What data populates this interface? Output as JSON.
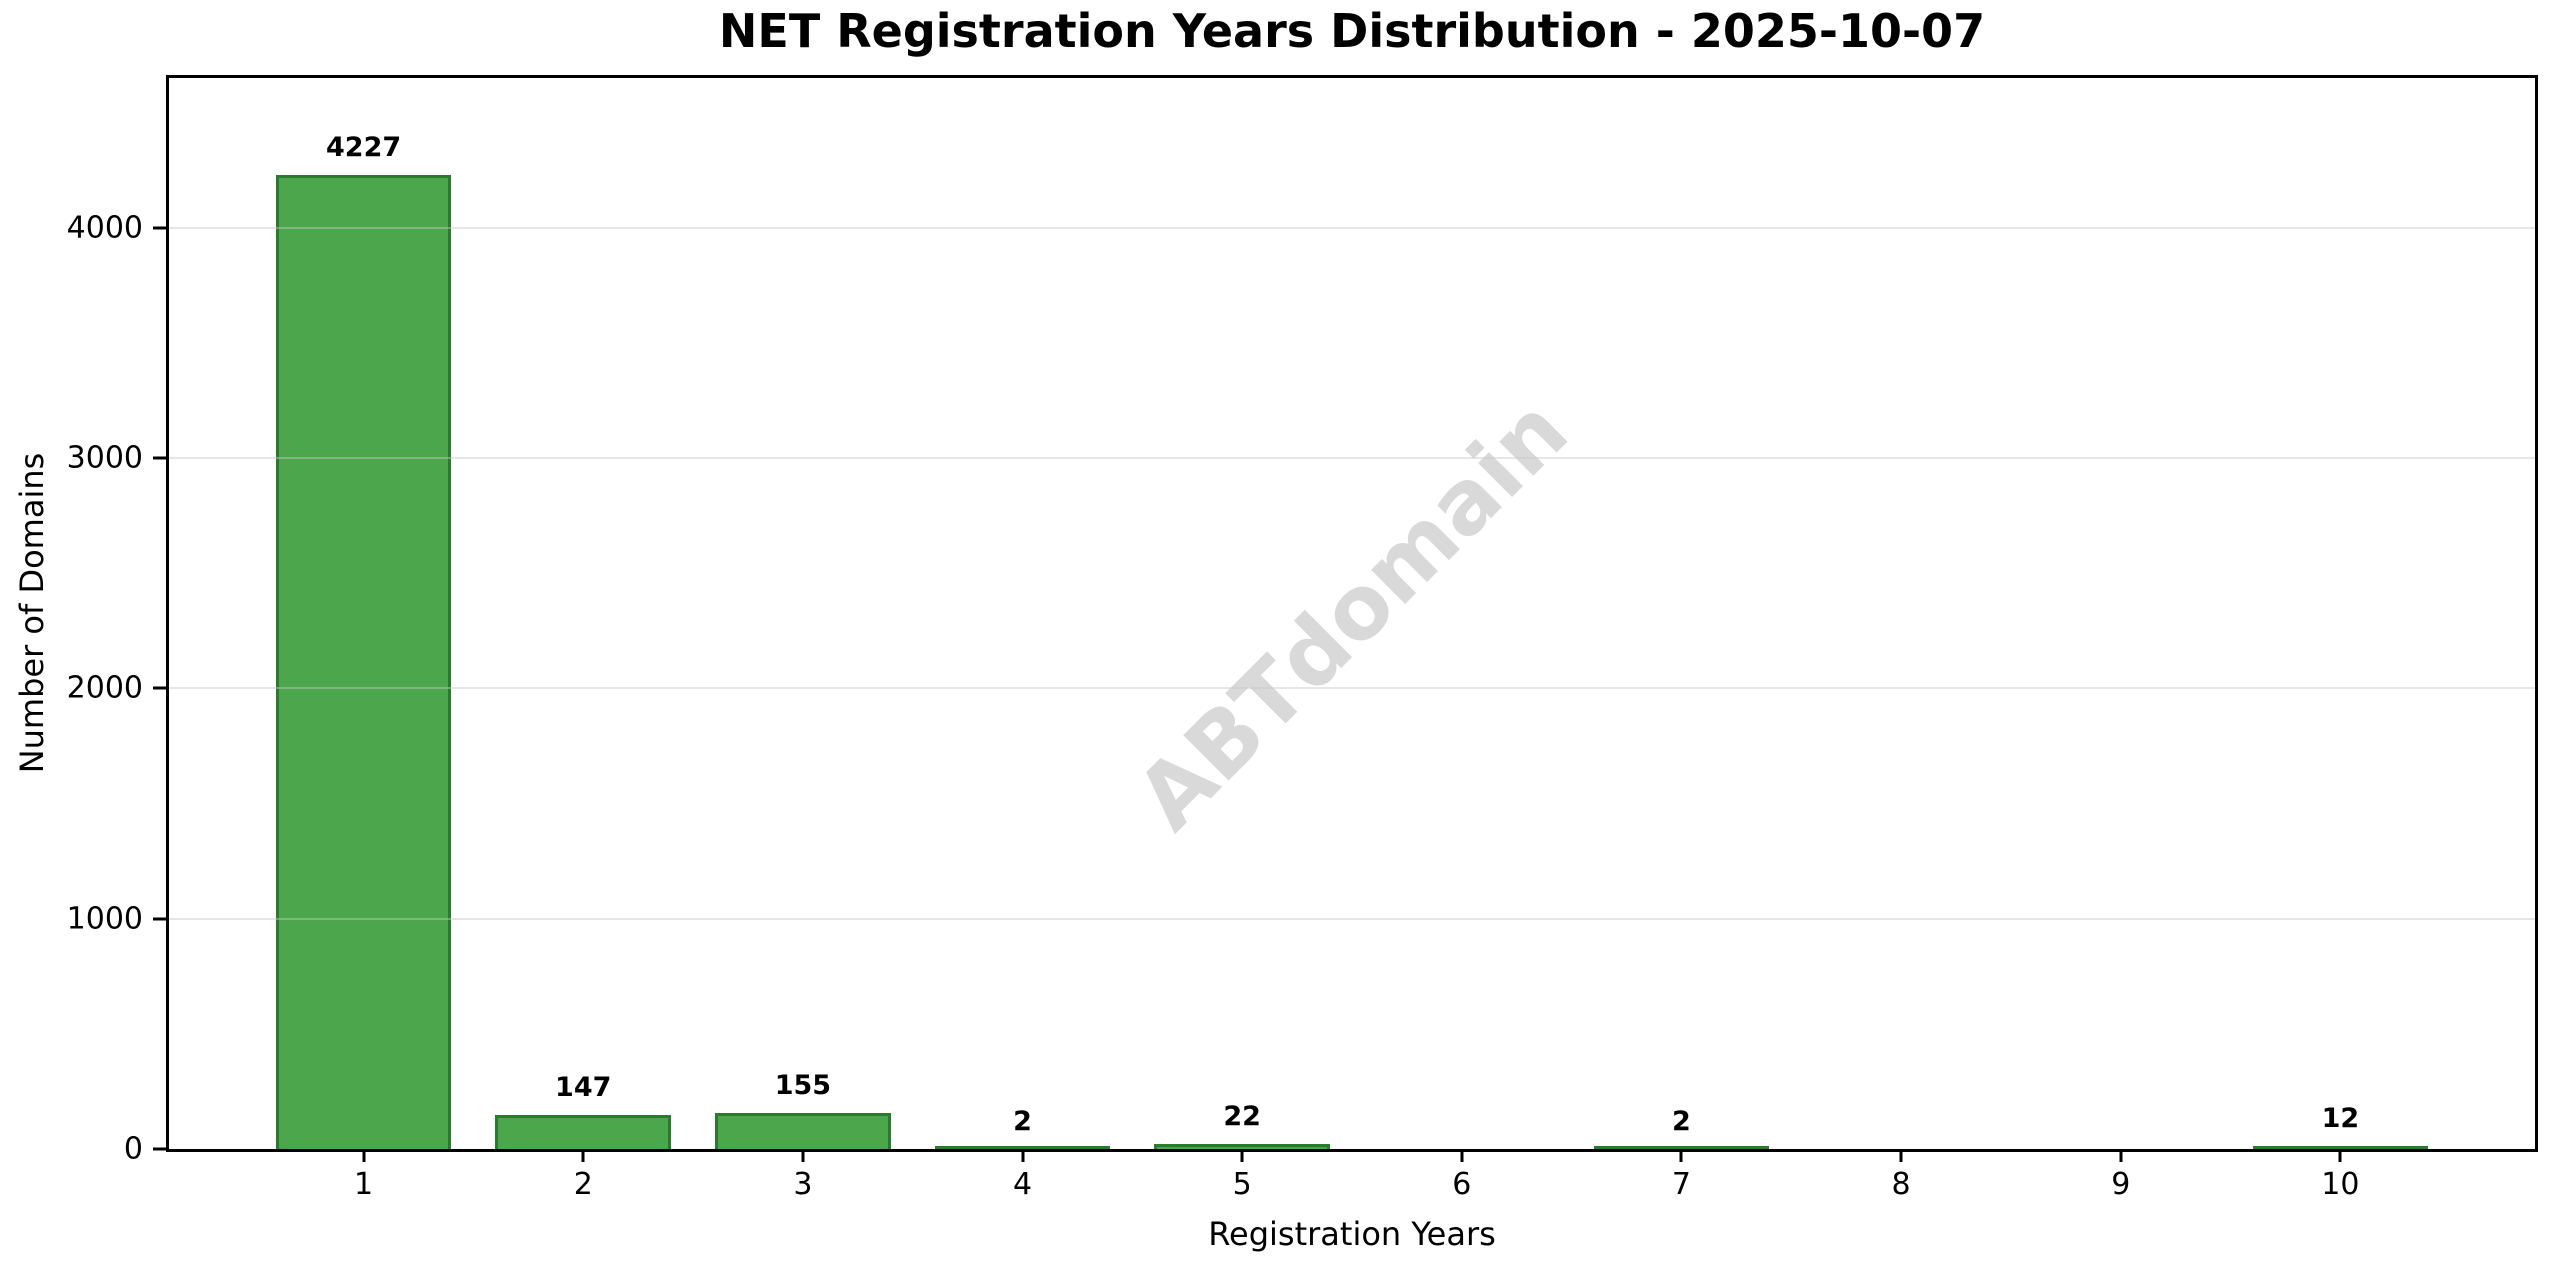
{
  "figure": {
    "title": "NET Registration Years Distribution - 2025-10-07",
    "watermark": "ABTdomain"
  },
  "chart_data": {
    "type": "bar",
    "title": "NET Registration Years Distribution - 2025-10-07",
    "xlabel": "Registration Years",
    "ylabel": "Number of Domains",
    "categories": [
      "1",
      "2",
      "3",
      "4",
      "5",
      "6",
      "7",
      "8",
      "9",
      "10"
    ],
    "values": [
      4227,
      147,
      155,
      2,
      22,
      0,
      2,
      0,
      0,
      12
    ],
    "bar_value_labels": [
      "4227",
      "147",
      "155",
      "2",
      "22",
      "",
      "2",
      "",
      "",
      "12"
    ],
    "ylim": [
      0,
      4650
    ],
    "yticks": [
      0,
      1000,
      2000,
      3000,
      4000
    ],
    "xlim": [
      0.114,
      10.886
    ],
    "bar_width": 0.8,
    "grid": "horizontal-only",
    "legend": null,
    "watermark_text": "ABTdomain",
    "colors": {
      "bar_fill": "#4ca64c",
      "bar_edge": "#2b7a2f",
      "gridline": "#c8c8c8",
      "watermark": "#d9d9d9",
      "text": "#000000",
      "background": "#ffffff"
    }
  }
}
